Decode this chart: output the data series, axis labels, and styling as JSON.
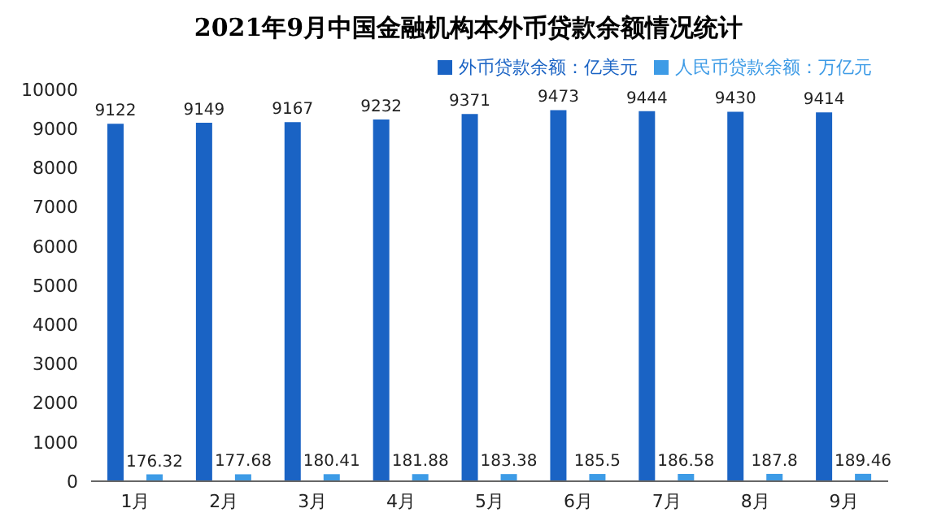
{
  "chart_data": {
    "type": "bar",
    "title": "2021年9月中国金融机构本外币贷款余额情况统计",
    "categories": [
      "1月",
      "2月",
      "3月",
      "4月",
      "5月",
      "6月",
      "7月",
      "8月",
      "9月"
    ],
    "series": [
      {
        "name": "外币贷款余额：亿美元",
        "color": "#1a63c4",
        "values": [
          9122,
          9149,
          9167,
          9232,
          9371,
          9473,
          9444,
          9430,
          9414
        ]
      },
      {
        "name": "人民币贷款余额：万亿元",
        "color": "#3d9be6",
        "values": [
          176.32,
          177.68,
          180.41,
          181.88,
          183.38,
          185.5,
          186.58,
          187.8,
          189.46
        ]
      }
    ],
    "ylim": [
      0,
      10000
    ],
    "yticks": [
      0,
      1000,
      2000,
      3000,
      4000,
      5000,
      6000,
      7000,
      8000,
      9000,
      10000
    ],
    "grid": false,
    "legend": "top right",
    "data_labels": true
  }
}
